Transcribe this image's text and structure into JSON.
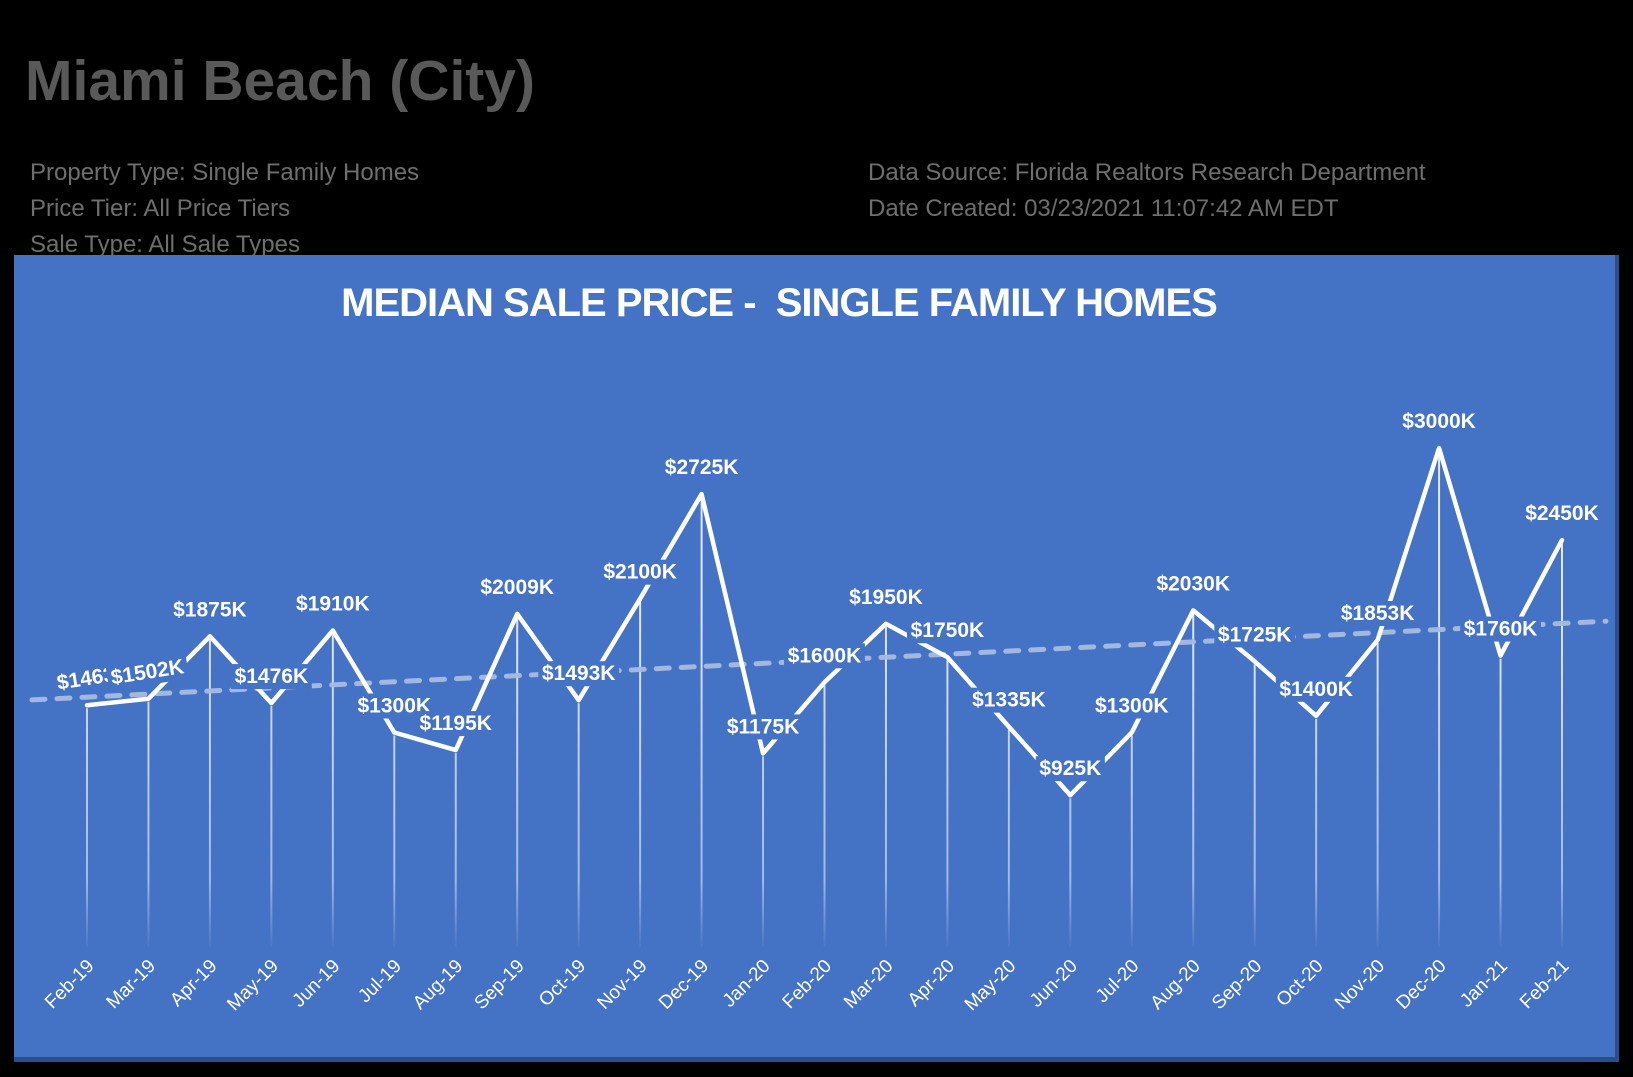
{
  "header": {
    "title": "Miami Beach (City)",
    "meta_left": [
      "Property Type: Single Family Homes",
      "Price Tier: All Price Tiers",
      "Sale Type: All Sale Types"
    ],
    "meta_right": [
      "Data Source: Florida Realtors Research Department",
      "Date Created: 03/23/2021 11:07:42 AM EDT"
    ]
  },
  "chart_data": {
    "type": "line",
    "title": "MEDIAN SALE PRICE -  SINGLE FAMILY HOMES",
    "series_name": "Median Sale Price ($K)",
    "categories": [
      "Feb-19",
      "Mar-19",
      "Apr-19",
      "May-19",
      "Jun-19",
      "Jul-19",
      "Aug-19",
      "Sep-19",
      "Oct-19",
      "Nov-19",
      "Dec-19",
      "Jan-20",
      "Feb-20",
      "Mar-20",
      "Apr-20",
      "May-20",
      "Jun-20",
      "Jul-20",
      "Aug-20",
      "Sep-20",
      "Oct-20",
      "Nov-20",
      "Dec-20",
      "Jan-21",
      "Feb-21"
    ],
    "values": [
      1463,
      1502,
      1875,
      1476,
      1910,
      1300,
      1195,
      2009,
      1493,
      2100,
      2725,
      1175,
      1600,
      1950,
      1750,
      1335,
      925,
      1300,
      2030,
      1725,
      1400,
      1853,
      3000,
      1760,
      2450
    ],
    "labels": [
      "$1463",
      "$1502K",
      "$1875K",
      "$1476K",
      "$1910K",
      "$1300K",
      "$1195K",
      "$2009K",
      "$1493K",
      "$2100K",
      "$2725K",
      "$1175K",
      "$1600K",
      "$1950K",
      "$1750K",
      "$1335K",
      "$925K",
      "$1300K",
      "$2030K",
      "$1725K",
      "$1400K",
      "$1853K",
      "$3000K",
      "$1760K",
      "$2450K"
    ],
    "label_tilts": {
      "0": -9,
      "1": -9
    },
    "xlabel": "",
    "ylabel": "",
    "ylim": [
      0,
      3200
    ],
    "grid": false,
    "legend": false,
    "x_tick_rotation": -45,
    "trendline": {
      "type": "linear",
      "style": "dashed",
      "start_value": 1495,
      "end_value": 1965
    },
    "colors": {
      "page_background": "#000000",
      "chart_background": "#4472C4",
      "chart_edge": "#2b4d8f",
      "series_line": "#FFFFFF",
      "data_labels": "#FFFFFF",
      "trendline": "#A9BCE0",
      "drop_lines": "#FFFFFF",
      "header_title": "#595959",
      "header_meta": "#6e6e6e"
    }
  }
}
